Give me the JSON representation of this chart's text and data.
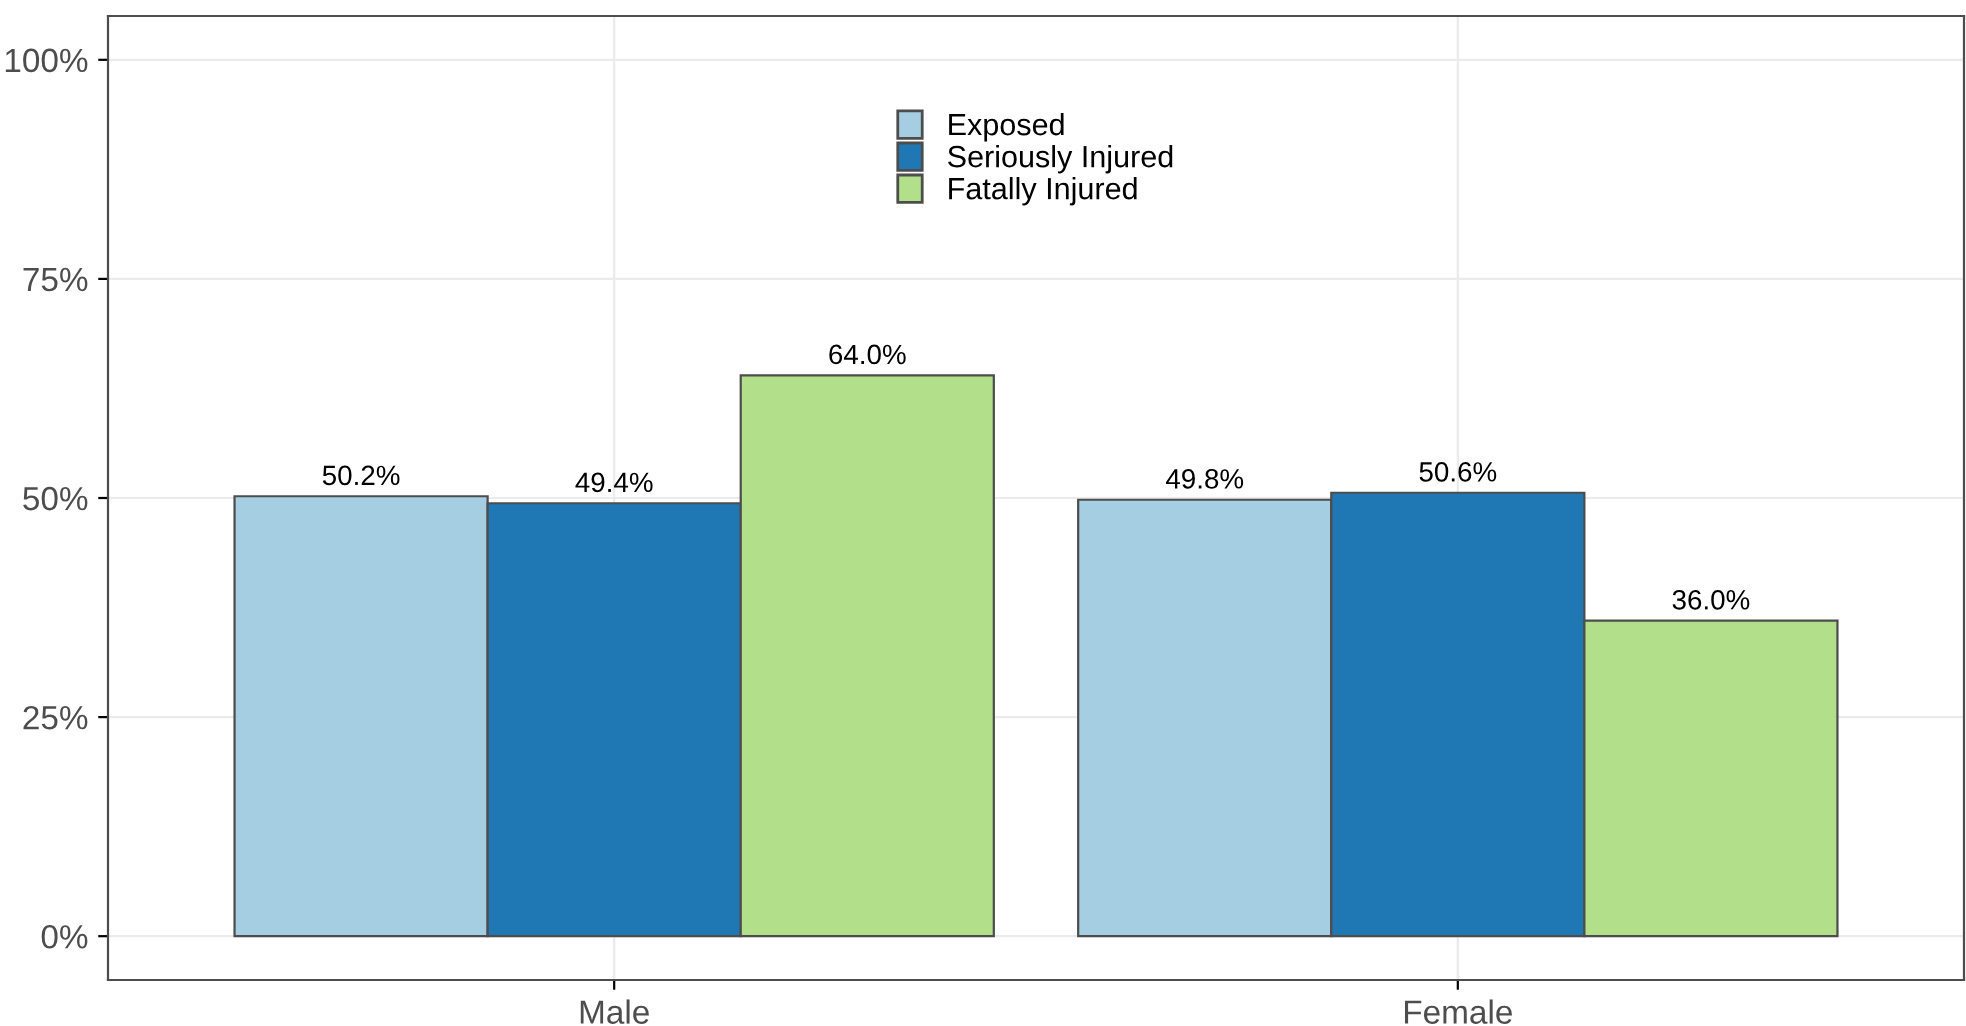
{
  "chart_data": {
    "type": "bar",
    "categories": [
      "Male",
      "Female"
    ],
    "series": [
      {
        "name": "Exposed",
        "color": "#a6cee3",
        "values": [
          50.2,
          49.8
        ],
        "value_labels": [
          "50.2%",
          "49.8%"
        ]
      },
      {
        "name": "Seriously Injured",
        "color": "#1f78b4",
        "values": [
          49.4,
          50.6
        ],
        "value_labels": [
          "49.4%",
          "50.6%"
        ]
      },
      {
        "name": "Fatally Injured",
        "color": "#b2df8a",
        "values": [
          64.0,
          36.0
        ],
        "value_labels": [
          "64.0%",
          "36.0%"
        ]
      }
    ],
    "ylim": [
      -5,
      105
    ],
    "yticks": [
      {
        "value": 0,
        "label": "0%"
      },
      {
        "value": 25,
        "label": "25%"
      },
      {
        "value": 50,
        "label": "50%"
      },
      {
        "value": 75,
        "label": "75%"
      },
      {
        "value": 100,
        "label": "100%"
      }
    ],
    "grid": true,
    "legend": "top"
  }
}
